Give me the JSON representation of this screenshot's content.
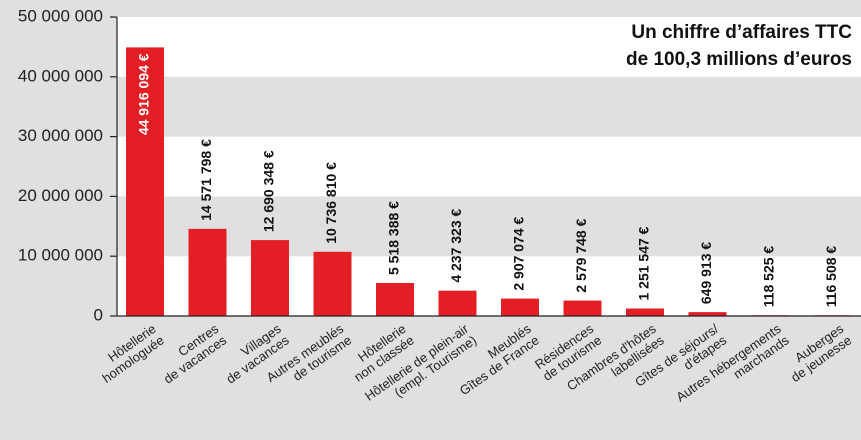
{
  "chart_data": {
    "type": "bar",
    "title": [
      "Un chiffre d’affaires TTC",
      "de 100,3 millions d’euros"
    ],
    "categories": [
      [
        "Hôtellerie",
        "homologuée"
      ],
      [
        "Centres",
        "de vacances"
      ],
      [
        "Villages",
        "de vacances"
      ],
      [
        "Autres meublés",
        "de tourisme"
      ],
      [
        "Hôtellerie",
        "non classée"
      ],
      [
        "Hôtellerie de plein-air",
        "(empl. Tourisme)"
      ],
      [
        "Meublés",
        "Gîtes de France"
      ],
      [
        "Résidences",
        "de tourisme"
      ],
      [
        "Chambres d'hôtes",
        "labellisées"
      ],
      [
        "Gîtes de séjours/",
        "d'étapes"
      ],
      [
        "Autres hébergements",
        "marchands"
      ],
      [
        "Auberges",
        "de jeunesse"
      ]
    ],
    "values": [
      44916094,
      14571798,
      12690348,
      10736810,
      5518388,
      4237323,
      2907074,
      2579748,
      1251547,
      649913,
      118525,
      116508
    ],
    "value_labels": [
      "44 916 094 €",
      "14 571 798 €",
      "12 690 348 €",
      "10 736 810 €",
      "5 518 388 €",
      "4 237 323 €",
      "2 907 074 €",
      "2 579 748 €",
      "1 251 547 €",
      "649 913 €",
      "118 525 €",
      "116 508 €"
    ],
    "color": "#e31e24",
    "ylim": [
      0,
      50000000
    ],
    "yticks": [
      0,
      {
        "value": 10000000,
        "label": "10 000 000"
      },
      {
        "value": 20000000,
        "label": "20 000 000"
      },
      {
        "value": 30000000,
        "label": "30 000 000"
      },
      {
        "value": 40000000,
        "label": "40 000 000"
      },
      {
        "value": 50000000,
        "label": "50 000 000"
      }
    ],
    "grid": true
  }
}
